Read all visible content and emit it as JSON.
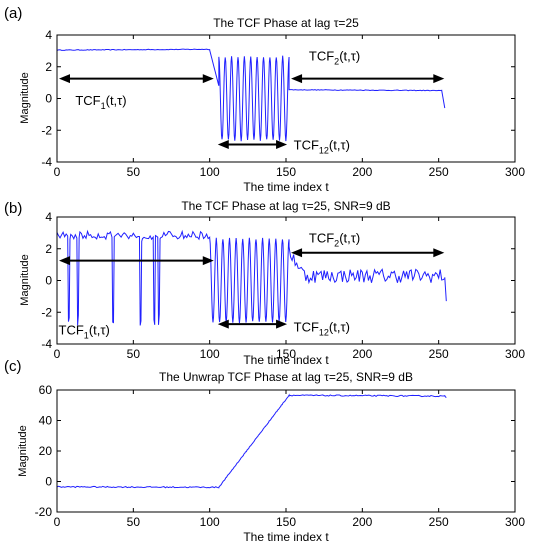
{
  "chart_data": [
    {
      "type": "line",
      "panel_label": "(a)",
      "title": "The TCF Phase at lag τ=25",
      "xlabel": "The time index t",
      "ylabel": "Magnitude",
      "xlim": [
        0,
        300
      ],
      "ylim": [
        -4,
        4
      ],
      "xticks": [
        0,
        50,
        100,
        150,
        200,
        250,
        300
      ],
      "yticks": [
        -4,
        -2,
        0,
        2,
        4
      ],
      "series_color": "#2020ff",
      "segments": [
        {
          "kind": "flat",
          "x": [
            0,
            100
          ],
          "y_start": 3.05,
          "y_end": 3.1
        },
        {
          "kind": "drop",
          "x": [
            100,
            106
          ],
          "y": [
            3.05,
            0.8
          ]
        },
        {
          "kind": "oscillation",
          "x": [
            106,
            152
          ],
          "amplitude": 2.7,
          "cycles": 11
        },
        {
          "kind": "flat",
          "x": [
            152,
            252
          ],
          "y_start": 0.55,
          "y_end": 0.5
        },
        {
          "kind": "tail",
          "x": [
            252,
            254
          ],
          "y": [
            0.5,
            -0.6
          ]
        }
      ],
      "annotations": [
        {
          "main": "TCF",
          "sub": "1",
          "rest": "(t,τ)",
          "arrow_x": [
            0,
            104
          ],
          "arrow_y": 1.25,
          "text_x": 12,
          "text_y": -0.4
        },
        {
          "main": "TCF",
          "sub": "12",
          "rest": "(t,τ)",
          "arrow_x": [
            104,
            152
          ],
          "arrow_y": -2.9,
          "text_x": 155,
          "text_y": -3.2
        },
        {
          "main": "TCF",
          "sub": "2",
          "rest": "(t,τ)",
          "arrow_x": [
            152,
            255
          ],
          "arrow_y": 1.25,
          "text_x": 165,
          "text_y": 2.4
        }
      ]
    },
    {
      "type": "line",
      "panel_label": "(b)",
      "title": "The TCF Phase at lag τ=25, SNR=9 dB",
      "xlabel": "The time index t",
      "ylabel": "Magnitude",
      "xlim": [
        0,
        300
      ],
      "ylim": [
        -4,
        4
      ],
      "xticks": [
        0,
        50,
        100,
        150,
        200,
        250,
        300
      ],
      "yticks": [
        -4,
        -2,
        0,
        2,
        4
      ],
      "series_color": "#2020ff",
      "segments": [
        {
          "kind": "noisy_wrap",
          "x": [
            0,
            100
          ],
          "level": 2.85
        },
        {
          "kind": "oscillation",
          "x": [
            100,
            152
          ],
          "amplitude": 2.7,
          "cycles": 12
        },
        {
          "kind": "noisy_flat",
          "x": [
            152,
            254
          ],
          "level": 0.3
        },
        {
          "kind": "tail",
          "x": [
            254,
            255
          ],
          "y": [
            0.2,
            -1.3
          ]
        }
      ],
      "annotations": [
        {
          "main": "TCF",
          "sub": "1",
          "rest": "(t,τ)",
          "arrow_x": [
            0,
            104
          ],
          "arrow_y": 1.25,
          "text_x": 1,
          "text_y": -3.4
        },
        {
          "main": "TCF",
          "sub": "12",
          "rest": "(t,τ)",
          "arrow_x": [
            104,
            152
          ],
          "arrow_y": -2.75,
          "text_x": 155,
          "text_y": -3.2
        },
        {
          "main": "TCF",
          "sub": "2",
          "rest": "(t,τ)",
          "arrow_x": [
            152,
            255
          ],
          "arrow_y": 1.75,
          "text_x": 165,
          "text_y": 2.4
        }
      ]
    },
    {
      "type": "line",
      "panel_label": "(c)",
      "title": "The Unwrap TCF Phase at lag τ=25, SNR=9 dB",
      "xlabel": "The time index t",
      "ylabel": "Magnitude",
      "xlim": [
        0,
        300
      ],
      "ylim": [
        -20,
        60
      ],
      "xticks": [
        0,
        50,
        100,
        150,
        200,
        250,
        300
      ],
      "yticks": [
        -20,
        0,
        20,
        40,
        60
      ],
      "series_color": "#2020ff",
      "segments": [
        {
          "kind": "noisy_line",
          "x": [
            0,
            106
          ],
          "y": [
            -3.5,
            -3.8
          ]
        },
        {
          "kind": "ramp",
          "x": [
            106,
            152
          ],
          "y": [
            -3.8,
            56.5
          ]
        },
        {
          "kind": "noisy_line",
          "x": [
            152,
            254
          ],
          "y": [
            56.5,
            56.0
          ]
        },
        {
          "kind": "tail",
          "x": [
            254,
            255
          ],
          "y": [
            56.0,
            55.0
          ]
        }
      ],
      "annotations": []
    }
  ]
}
